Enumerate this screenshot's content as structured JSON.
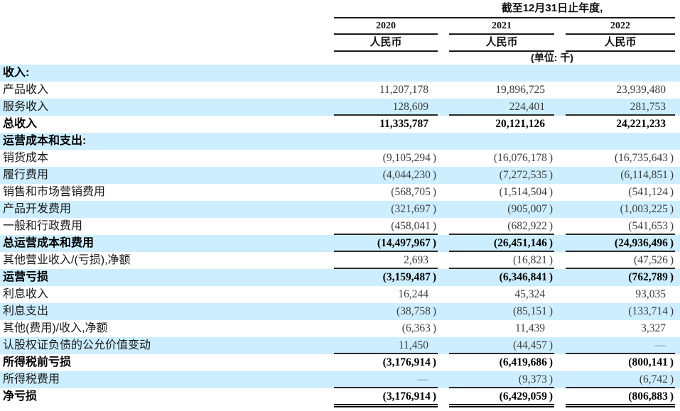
{
  "header": {
    "period_title": "截至12月31日止年度,",
    "unit_note": "(单位: 千)",
    "columns": [
      {
        "year": "2020",
        "currency": "人民币"
      },
      {
        "year": "2021",
        "currency": "人民币"
      },
      {
        "year": "2022",
        "currency": "人民币"
      }
    ]
  },
  "colors": {
    "shaded_row_bg": "#cceeff",
    "rule_color": "#1a1a1a",
    "regular_value_text": "#3d3d3d",
    "bold_value_text": "#000000"
  },
  "table": {
    "rows": [
      {
        "label": "收入:",
        "bold": true,
        "values": [
          "",
          "",
          ""
        ]
      },
      {
        "label": "产品收入",
        "bold": false,
        "values": [
          "11,207,178",
          "19,896,725",
          "23,939,480"
        ]
      },
      {
        "label": "服务收入",
        "bold": false,
        "values": [
          "128,609",
          "224,401",
          "281,753"
        ],
        "bottom": "single"
      },
      {
        "label": "总收入",
        "bold": true,
        "values": [
          "11,335,787",
          "20,121,126",
          "24,221,233"
        ]
      },
      {
        "label": "运营成本和支出:",
        "bold": true,
        "values": [
          "",
          "",
          ""
        ]
      },
      {
        "label": "销货成本",
        "bold": false,
        "values": [
          "(9,105,294)",
          "(16,076,178)",
          "(16,735,643)"
        ]
      },
      {
        "label": "履行费用",
        "bold": false,
        "values": [
          "(4,044,230)",
          "(7,272,535)",
          "(6,114,851)"
        ]
      },
      {
        "label": "销售和市场营销费用",
        "bold": false,
        "values": [
          "(568,705)",
          "(1,514,504)",
          "(541,124)"
        ]
      },
      {
        "label": "产品开发费用",
        "bold": false,
        "values": [
          "(321,697)",
          "(905,007)",
          "(1,003,225)"
        ]
      },
      {
        "label": "一般和行政费用",
        "bold": false,
        "values": [
          "(458,041)",
          "(682,922)",
          "(541,653)"
        ],
        "bottom": "single"
      },
      {
        "label": "总运营成本和费用",
        "bold": true,
        "values": [
          "(14,497,967)",
          "(26,451,146)",
          "(24,936,496)"
        ],
        "bottom": "single"
      },
      {
        "label": "其他营业收入/(亏损),净额",
        "bold": false,
        "values": [
          "2,693",
          "(16,821)",
          "(47,526)"
        ],
        "bottom": "single"
      },
      {
        "label": "运营亏损",
        "bold": true,
        "values": [
          "(3,159,487)",
          "(6,346,841)",
          "(762,789)"
        ]
      },
      {
        "label": "利息收入",
        "bold": false,
        "values": [
          "16,244",
          "45,324",
          "93,035"
        ]
      },
      {
        "label": "利息支出",
        "bold": false,
        "values": [
          "(38,758)",
          "(85,151)",
          "(133,714)"
        ]
      },
      {
        "label": "其他(费用)/收入,净额",
        "bold": false,
        "values": [
          "(6,363)",
          "11,439",
          "3,327"
        ]
      },
      {
        "label": "认股权证负债的公允价值变动",
        "bold": false,
        "values": [
          "11,450",
          "(44,457)",
          "—"
        ],
        "bottom": "single"
      },
      {
        "label": "所得税前亏损",
        "bold": true,
        "values": [
          "(3,176,914)",
          "(6,419,686)",
          "(800,141)"
        ]
      },
      {
        "label": "所得税费用",
        "bold": false,
        "values": [
          "—",
          "(9,373)",
          "(6,742)"
        ],
        "bottom": "single"
      },
      {
        "label": "净亏损",
        "bold": true,
        "values": [
          "(3,176,914)",
          "(6,429,059)",
          "(806,883)"
        ],
        "bottom": "double"
      }
    ]
  }
}
